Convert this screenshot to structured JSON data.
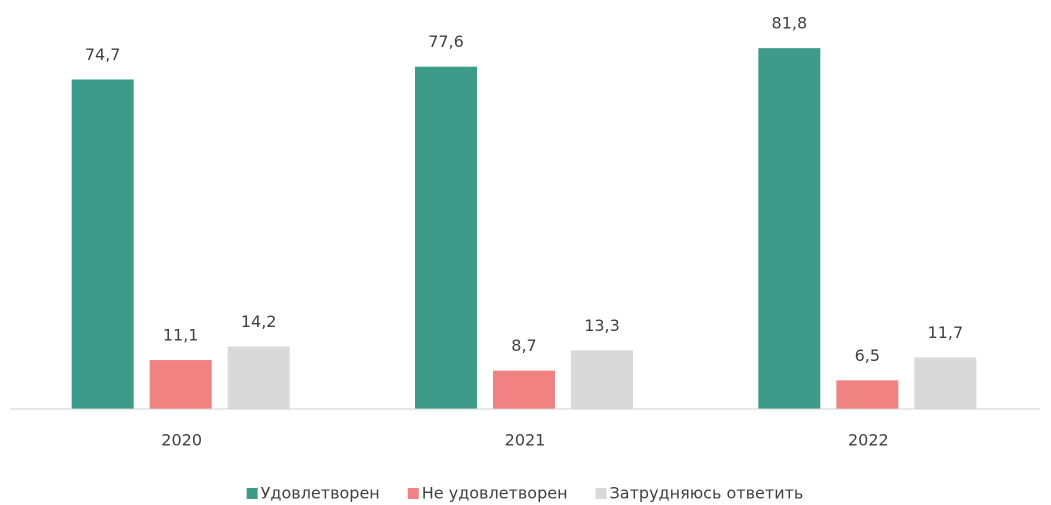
{
  "chart_data": {
    "type": "bar",
    "categories": [
      "2020",
      "2021",
      "2022"
    ],
    "series": [
      {
        "name": "Удовлетворен",
        "color": "#3d9b89",
        "values": [
          74.7,
          77.6,
          81.8
        ],
        "value_labels": [
          "74,7",
          "77,6",
          "81,8"
        ]
      },
      {
        "name": "Не удовлетворен",
        "color": "#f08282",
        "values": [
          11.1,
          8.7,
          6.5
        ],
        "value_labels": [
          "11,1",
          "8,7",
          "6,5"
        ]
      },
      {
        "name": "Затрудняюсь ответить",
        "color": "#d9d9d9",
        "values": [
          14.2,
          13.3,
          11.7
        ],
        "value_labels": [
          "14,2",
          "13,3",
          "11,7"
        ]
      }
    ],
    "ylim": [
      0,
      90
    ],
    "legend": "bottom"
  }
}
